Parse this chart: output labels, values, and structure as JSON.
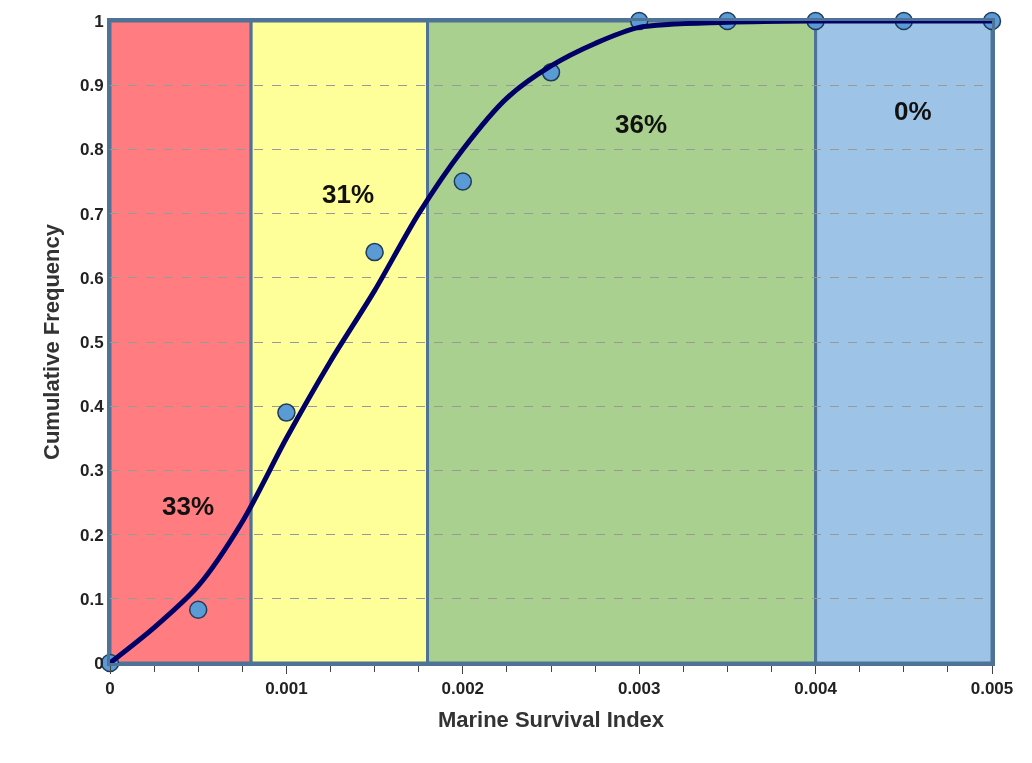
{
  "chart_data": {
    "type": "scatter",
    "xlabel": "Marine Survival Index",
    "ylabel": "Cumulative Frequency",
    "xlim": [
      0,
      0.005
    ],
    "xticks": [
      0,
      0.001,
      0.002,
      0.003,
      0.004,
      0.005
    ],
    "ylim": [
      0,
      1
    ],
    "yticks": [
      0,
      0.1,
      0.2,
      0.3,
      0.4,
      0.5,
      0.6,
      0.7,
      0.8,
      0.9,
      1
    ],
    "grid": "y",
    "legend": false,
    "bands": [
      {
        "axis": "x",
        "from": 0,
        "to": 0.0008,
        "color": "#ff7c80",
        "label": "33%"
      },
      {
        "axis": "x",
        "from": 0.0008,
        "to": 0.0018,
        "color": "#ffff99",
        "label": "31%"
      },
      {
        "axis": "x",
        "from": 0.0018,
        "to": 0.004,
        "color": "#a9d08e",
        "label": "36%"
      },
      {
        "axis": "x",
        "from": 0.004,
        "to": 0.005,
        "color": "#9dc3e6",
        "label": "0%"
      }
    ],
    "series": [
      {
        "marker": "circle",
        "color": "#5b9bd5",
        "x": [
          0,
          0.0005,
          0.001,
          0.0015,
          0.002,
          0.0025,
          0.003,
          0.0035,
          0.004,
          0.0045,
          0.005
        ],
        "values": [
          0,
          0.083,
          0.39,
          0.64,
          0.75,
          0.92,
          1,
          1,
          1,
          1,
          1
        ]
      },
      {
        "type": "line",
        "marker": "none",
        "color": "#000066",
        "x": [
          0,
          0.00025,
          0.0005,
          0.00075,
          0.001,
          0.00125,
          0.0015,
          0.00175,
          0.002,
          0.00225,
          0.0025,
          0.00275,
          0.003,
          0.0035,
          0.004,
          0.0045,
          0.005
        ],
        "values": [
          0,
          0.055,
          0.12,
          0.22,
          0.35,
          0.47,
          0.58,
          0.7,
          0.8,
          0.88,
          0.93,
          0.965,
          0.99,
          0.998,
          1,
          1,
          1
        ]
      }
    ]
  }
}
